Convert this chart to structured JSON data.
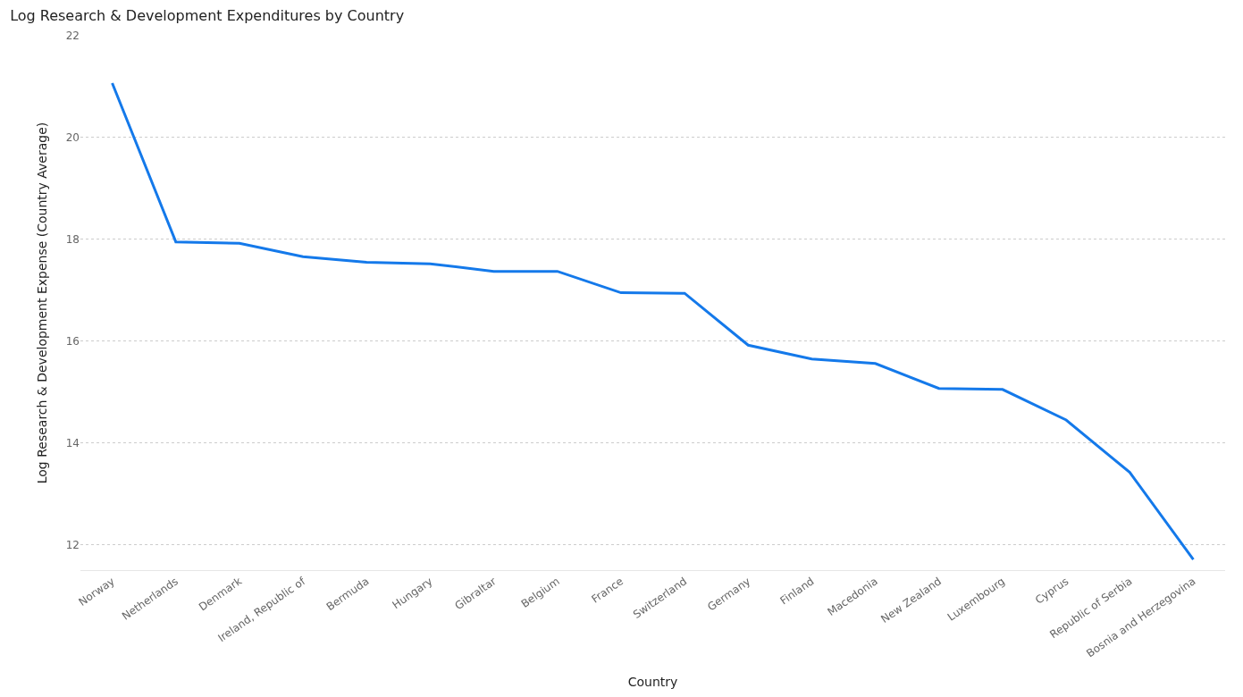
{
  "chart_data": {
    "type": "line",
    "title": "Log Research & Development Expenditures by Country",
    "xlabel": "Country",
    "ylabel": "Log Research & Development Expense (Country Average)",
    "categories": [
      "Norway",
      "Netherlands",
      "Denmark",
      "Ireland, Republic of",
      "Bermuda",
      "Hungary",
      "Gibraltar",
      "Belgium",
      "France",
      "Switzerland",
      "Germany",
      "Finland",
      "Macedonia",
      "New Zealand",
      "Luxembourg",
      "Cyprus",
      "Republic of Serbia",
      "Bosnia and Herzegovina"
    ],
    "series": [
      {
        "color": "#1479ea",
        "values": [
          21.07,
          17.95,
          17.92,
          17.66,
          17.55,
          17.52,
          17.37,
          17.37,
          16.95,
          16.94,
          15.92,
          15.65,
          15.56,
          15.07,
          15.05,
          14.45,
          13.42,
          11.71
        ]
      }
    ],
    "ylim": [
      11.5,
      22
    ],
    "yticks": [
      12,
      14,
      16,
      18,
      20,
      22
    ],
    "grid": "y",
    "line_style": "solid"
  }
}
